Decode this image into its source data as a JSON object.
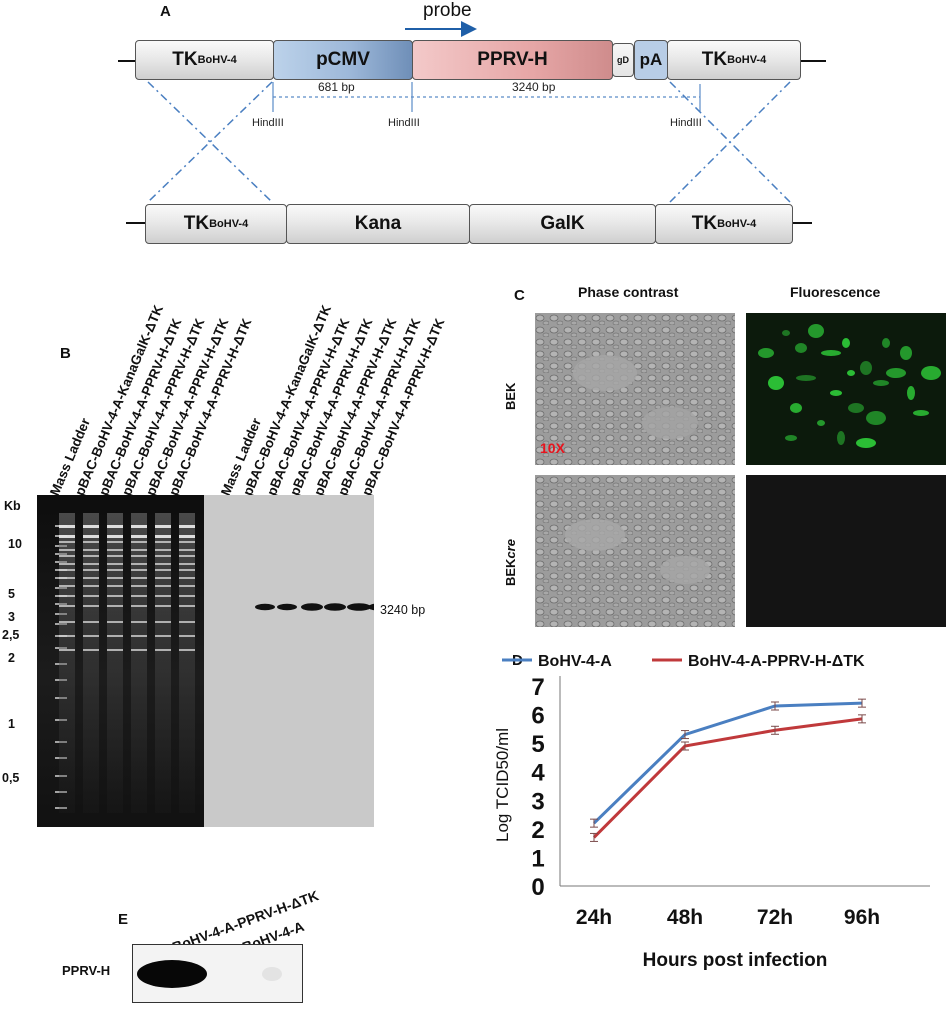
{
  "panel_a": {
    "label": "A",
    "probe": "probe",
    "tk_label": "TK",
    "tk_sup": "BoHV-4",
    "pcmv": "pCMV",
    "pprv": "PPRV-H",
    "gd": "gD",
    "pa": "pA",
    "bp_681": "681 bp",
    "bp_3240": "3240 bp",
    "hind1": "HindIII",
    "hind2": "HindIII",
    "hind3": "HindIII",
    "kana": "Kana",
    "galk": "GalK"
  },
  "panel_b": {
    "label": "B",
    "kb": "Kb",
    "lanes": [
      "Mass Ladder",
      "pBAC-BoHV-4-A-KanaGalK-ΔTK",
      "pBAC-BoHV-4-A-PPRV-H-ΔTK",
      "pBAC-BoHV-4-A-PPRV-H-ΔTK",
      "pBAC-BoHV-4-A-PPRV-H-ΔTK",
      "pBAC-BoHV-4-A-PPRV-H-ΔTK",
      "Mass Ladder",
      "pBAC-BoHV-4-A-KanaGalK-ΔTK",
      "pBAC-BoHV-4-A-PPRV-H-ΔTK",
      "pBAC-BoHV-4-A-PPRV-H-ΔTK",
      "pBAC-BoHV-4-A-PPRV-H-ΔTK",
      "pBAC-BoHV-4-A-PPRV-H-ΔTK",
      "pBAC-BoHV-4-A-PPRV-H-ΔTK"
    ],
    "markers": [
      "10",
      "5",
      "3",
      "2,5",
      "2",
      "1",
      "0,5"
    ],
    "band_label": "3240 bp"
  },
  "panel_c": {
    "label": "C",
    "col1": "Phase contrast",
    "col2": "Fluorescence",
    "row1": "BEK",
    "row2_prefix": "BEK",
    "row2_italic": "cre",
    "magnification": "10X",
    "colors": {
      "fluorescence": "#2fcf3a",
      "magnification_text": "#e8141e"
    }
  },
  "panel_d": {
    "label": "D",
    "chart_data": {
      "type": "line",
      "categories": [
        "24h",
        "48h",
        "72h",
        "96h"
      ],
      "series": [
        {
          "name": "BoHV-4-A",
          "values": [
            2.2,
            5.3,
            6.3,
            6.4
          ],
          "color": "#4a7fc1"
        },
        {
          "name": "BoHV-4-A-PPRV-H-ΔTK",
          "values": [
            1.7,
            4.9,
            5.45,
            5.85
          ],
          "color": "#c0393b"
        }
      ],
      "xlabel": "Hours post infection",
      "ylabel": "Log TCID50/ml",
      "ylim": [
        0,
        7
      ],
      "yticks": [
        "0",
        "1",
        "2",
        "3",
        "4",
        "5",
        "6",
        "7"
      ]
    }
  },
  "panel_e": {
    "label": "E",
    "lane1": "BoHV-4-A-PPRV-H-ΔTK",
    "lane2": "BoHV-4-A",
    "row": "PPRV-H"
  }
}
